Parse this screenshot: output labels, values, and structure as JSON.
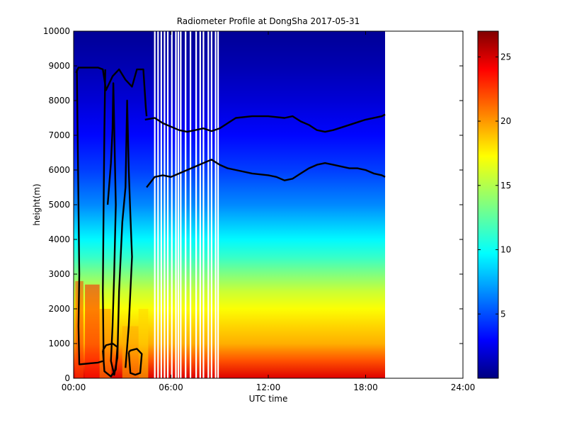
{
  "chart_data": {
    "type": "heatmap",
    "title": "Radiometer Profile at DongSha 2017-05-31",
    "xlabel": "UTC time",
    "ylabel": "height(m)",
    "x_unit": "hours UTC",
    "xlim": [
      0,
      24
    ],
    "ylim": [
      0,
      10000
    ],
    "x_ticks": [
      0,
      6,
      12,
      18,
      24
    ],
    "x_tick_labels": [
      "00:00",
      "06:00",
      "12:00",
      "18:00",
      "24:00"
    ],
    "y_ticks": [
      0,
      1000,
      2000,
      3000,
      4000,
      5000,
      6000,
      7000,
      8000,
      9000,
      10000
    ],
    "y_tick_labels": [
      "0",
      "1000",
      "2000",
      "3000",
      "4000",
      "5000",
      "6000",
      "7000",
      "8000",
      "9000",
      "10000"
    ],
    "data_extent_hours": [
      0,
      19.2
    ],
    "colorbar": {
      "colormap": "jet",
      "range": [
        0,
        27
      ],
      "ticks": [
        5,
        10,
        15,
        20,
        25
      ],
      "tick_labels": [
        "5",
        "10",
        "15",
        "20",
        "25"
      ]
    },
    "gap_lines_hours": [
      5.0,
      5.2,
      5.4,
      5.6,
      5.8,
      6.05,
      6.3,
      6.45,
      6.6,
      6.9,
      7.2,
      7.55,
      7.8,
      8.0,
      8.3,
      8.5,
      8.75,
      8.9
    ],
    "vertical_profile": [
      {
        "height": 0,
        "value": 24.5
      },
      {
        "height": 500,
        "value": 21.5
      },
      {
        "height": 1000,
        "value": 19.0
      },
      {
        "height": 1500,
        "value": 18.0
      },
      {
        "height": 2000,
        "value": 16.8
      },
      {
        "height": 2500,
        "value": 15.5
      },
      {
        "height": 3000,
        "value": 13.5
      },
      {
        "height": 3500,
        "value": 11.5
      },
      {
        "height": 4000,
        "value": 10.0
      },
      {
        "height": 5000,
        "value": 7.0
      },
      {
        "height": 6000,
        "value": 5.0
      },
      {
        "height": 7000,
        "value": 3.5
      },
      {
        "height": 8000,
        "value": 2.3
      },
      {
        "height": 9000,
        "value": 1.3
      },
      {
        "height": 10000,
        "value": 0.6
      }
    ],
    "contours": [
      {
        "name": "",
        "points": [
          [
            4.4,
            7450
          ],
          [
            5.0,
            7500
          ],
          [
            5.5,
            7350
          ],
          [
            6.0,
            7250
          ],
          [
            6.5,
            7150
          ],
          [
            7.0,
            7100
          ],
          [
            7.5,
            7150
          ],
          [
            8.0,
            7200
          ],
          [
            8.5,
            7120
          ],
          [
            9.0,
            7200
          ],
          [
            9.5,
            7350
          ],
          [
            10.0,
            7500
          ],
          [
            11.0,
            7550
          ],
          [
            12.0,
            7550
          ],
          [
            13.0,
            7500
          ],
          [
            13.5,
            7550
          ],
          [
            14.0,
            7400
          ],
          [
            14.5,
            7300
          ],
          [
            15.0,
            7150
          ],
          [
            15.5,
            7100
          ],
          [
            16.0,
            7150
          ],
          [
            17.0,
            7300
          ],
          [
            18.0,
            7450
          ],
          [
            19.0,
            7550
          ],
          [
            19.2,
            7600
          ]
        ]
      },
      {
        "name": "",
        "points": [
          [
            4.5,
            5500
          ],
          [
            5.0,
            5800
          ],
          [
            5.5,
            5850
          ],
          [
            6.0,
            5800
          ],
          [
            6.5,
            5900
          ],
          [
            7.0,
            6000
          ],
          [
            7.5,
            6100
          ],
          [
            8.0,
            6200
          ],
          [
            8.5,
            6300
          ],
          [
            9.0,
            6150
          ],
          [
            9.5,
            6050
          ],
          [
            10.0,
            6000
          ],
          [
            11.0,
            5900
          ],
          [
            12.0,
            5850
          ],
          [
            12.5,
            5800
          ],
          [
            13.0,
            5700
          ],
          [
            13.5,
            5750
          ],
          [
            14.0,
            5900
          ],
          [
            14.5,
            6050
          ],
          [
            15.0,
            6150
          ],
          [
            15.5,
            6200
          ],
          [
            16.0,
            6150
          ],
          [
            16.5,
            6100
          ],
          [
            17.0,
            6050
          ],
          [
            17.5,
            6050
          ],
          [
            18.0,
            6000
          ],
          [
            18.5,
            5900
          ],
          [
            19.0,
            5850
          ],
          [
            19.2,
            5800
          ]
        ]
      },
      {
        "name": "",
        "points": [
          [
            0.15,
            8800
          ],
          [
            0.3,
            8950
          ],
          [
            1.0,
            8950
          ],
          [
            1.5,
            8950
          ],
          [
            1.8,
            8900
          ],
          [
            2.0,
            8300
          ],
          [
            2.4,
            8700
          ],
          [
            2.8,
            8900
          ],
          [
            3.2,
            8600
          ],
          [
            3.6,
            8400
          ],
          [
            3.9,
            8900
          ],
          [
            4.3,
            8900
          ],
          [
            4.45,
            7800
          ],
          [
            4.5,
            7550
          ]
        ]
      },
      {
        "name": "",
        "points": [
          [
            0.2,
            8900
          ],
          [
            0.25,
            7000
          ],
          [
            0.3,
            5000
          ],
          [
            0.35,
            3000
          ],
          [
            0.3,
            1500
          ],
          [
            0.35,
            400
          ],
          [
            1.5,
            450
          ],
          [
            1.85,
            500
          ],
          [
            1.8,
            2500
          ],
          [
            1.85,
            5000
          ],
          [
            1.9,
            7200
          ],
          [
            1.95,
            8900
          ]
        ]
      },
      {
        "name": "",
        "points": [
          [
            2.1,
            5000
          ],
          [
            2.3,
            6200
          ],
          [
            2.4,
            7200
          ],
          [
            2.45,
            8500
          ],
          [
            2.6,
            5000
          ],
          [
            2.5,
            3000
          ],
          [
            2.4,
            1500
          ],
          [
            2.3,
            500
          ],
          [
            2.5,
            100
          ],
          [
            2.7,
            600
          ],
          [
            2.8,
            2500
          ],
          [
            3.0,
            4500
          ],
          [
            3.2,
            5500
          ],
          [
            3.3,
            8000
          ],
          [
            3.4,
            6000
          ],
          [
            3.5,
            4700
          ],
          [
            3.6,
            3500
          ],
          [
            3.4,
            1500
          ],
          [
            3.2,
            300
          ]
        ]
      },
      {
        "name": "",
        "points": [
          [
            1.8,
            800
          ],
          [
            1.9,
            200
          ],
          [
            2.3,
            50
          ],
          [
            2.6,
            250
          ],
          [
            2.7,
            900
          ],
          [
            2.4,
            1000
          ],
          [
            2.0,
            950
          ],
          [
            1.8,
            800
          ]
        ]
      },
      {
        "name": "",
        "points": [
          [
            3.4,
            750
          ],
          [
            3.5,
            150
          ],
          [
            3.8,
            100
          ],
          [
            4.1,
            150
          ],
          [
            4.2,
            700
          ],
          [
            3.9,
            850
          ],
          [
            3.5,
            800
          ],
          [
            3.4,
            750
          ]
        ]
      }
    ]
  }
}
